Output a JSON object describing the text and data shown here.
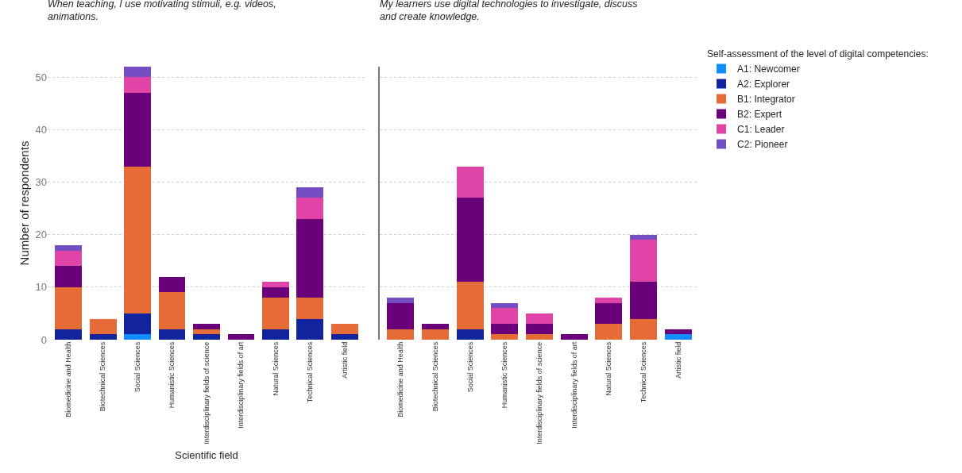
{
  "chart_data": [
    {
      "type": "bar",
      "title": "When teaching, I use motivating stimuli, e.g. videos, animations.",
      "xlabel": "Scientific field",
      "ylabel": "Number of respondents",
      "stacked": true,
      "categories": [
        "Biomedicine and Health",
        "Biotechnical Sciences",
        "Social Sciences",
        "Humanistic Sciences",
        "Interdisciplinary fields of science",
        "Interdisciplinary fields of art",
        "Natural Sciences",
        "Technical Sciences",
        "Artistic field"
      ],
      "series": [
        {
          "color": "#118dff",
          "values": [
            0,
            0,
            1,
            0,
            0,
            0,
            0,
            0,
            0
          ]
        },
        {
          "color": "#12239e",
          "values": [
            2,
            1,
            4,
            2,
            1,
            0,
            2,
            4,
            1
          ]
        },
        {
          "color": "#e66c37",
          "values": [
            8,
            3,
            28,
            7,
            1,
            0,
            6,
            4,
            2
          ]
        },
        {
          "color": "#6b007b",
          "values": [
            4,
            0,
            14,
            3,
            1,
            1,
            2,
            15,
            0
          ]
        },
        {
          "color": "#e044a7",
          "values": [
            3,
            0,
            3,
            0,
            0,
            0,
            1,
            4,
            0
          ]
        },
        {
          "color": "#744ec2",
          "values": [
            1,
            0,
            2,
            0,
            0,
            0,
            0,
            2,
            0
          ]
        }
      ],
      "ylim": [
        0,
        52
      ],
      "yticks": [
        0,
        10,
        20,
        30,
        40,
        50
      ],
      "grid": "y",
      "legend": false
    },
    {
      "type": "bar",
      "title": "My learners use digital technologies to investigate, discuss and create knowledge.",
      "legend_title": "Self-assessment of the level of digital competencies:",
      "stacked": true,
      "categories": [
        "Biomedicine and Health",
        "Biotechnical Sciences",
        "Social Sciences",
        "Humanistic Sciences",
        "Interdisciplinary fields of science",
        "Interdisciplinary fields of art",
        "Natural Sciences",
        "Technical Sciences",
        "Artistic field"
      ],
      "series": [
        {
          "name": "A1: Newcomer",
          "color": "#118dff",
          "values": [
            0,
            0,
            0,
            0,
            0,
            0,
            0,
            0,
            1
          ]
        },
        {
          "name": "A2: Explorer",
          "color": "#12239e",
          "values": [
            0,
            0,
            2,
            0,
            0,
            0,
            0,
            0,
            0
          ]
        },
        {
          "name": "B1: Integrator",
          "color": "#e66c37",
          "values": [
            2,
            2,
            9,
            1,
            1,
            0,
            3,
            4,
            0
          ]
        },
        {
          "name": "B2: Expert",
          "color": "#6b007b",
          "values": [
            5,
            1,
            16,
            2,
            2,
            1,
            4,
            7,
            1
          ]
        },
        {
          "name": "C1: Leader",
          "color": "#e044a7",
          "values": [
            0,
            0,
            6,
            3,
            2,
            0,
            1,
            8,
            0
          ]
        },
        {
          "name": "C2: Pioneer",
          "color": "#744ec2",
          "values": [
            1,
            0,
            0,
            1,
            0,
            0,
            0,
            1,
            0
          ]
        }
      ],
      "ylim": [
        0,
        52
      ],
      "yticks": [
        0,
        10,
        20,
        30,
        40,
        50
      ],
      "tick_labels": "x",
      "grid": "y",
      "legend": "top right"
    }
  ]
}
